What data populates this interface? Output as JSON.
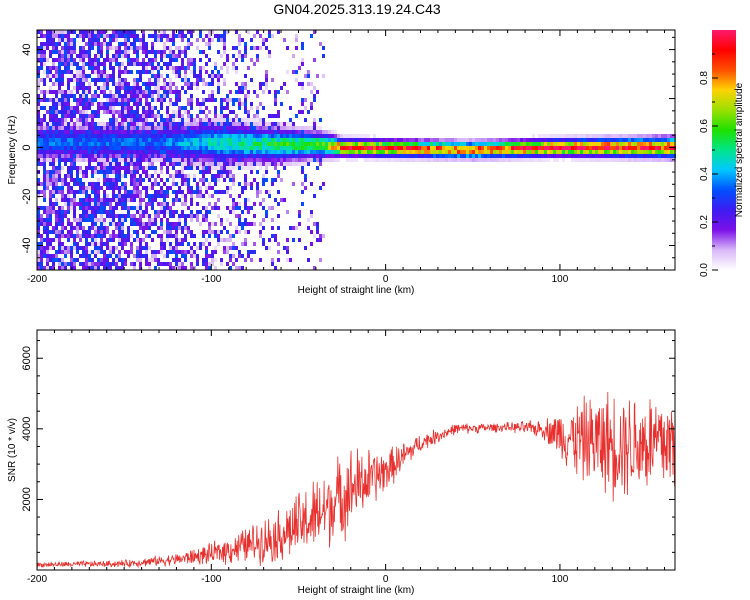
{
  "title": "GN04.2025.313.19.24.C43",
  "chart_data": [
    {
      "type": "heatmap",
      "name": "spectrogram",
      "xlabel": "Height of straight line (km)",
      "ylabel": "Frequency (Hz)",
      "xlim": [
        -200,
        166
      ],
      "ylim": [
        -50,
        48
      ],
      "xticks": [
        -200,
        -100,
        0,
        100
      ],
      "yticks": [
        -40,
        -20,
        0,
        20,
        40
      ],
      "colorbar": {
        "label": "Normalized spectral amplitude",
        "range": [
          0,
          1
        ],
        "ticks": [
          0.0,
          0.2,
          0.4,
          0.6,
          0.8
        ],
        "tick_labels": [
          "0.0",
          "0.2",
          "0.4",
          "0.6",
          "0.8"
        ],
        "colors": [
          "#ffffff",
          "#d9b8f8",
          "#7b10e8",
          "#3d1cf2",
          "#0050ff",
          "#00c8ff",
          "#00e58a",
          "#1fe000",
          "#9be000",
          "#ffd200",
          "#ff5000",
          "#ff0000",
          "#ff1a6e"
        ]
      },
      "signal_track": [
        {
          "x": -130,
          "center": 2,
          "width": 8,
          "peak": 0.35
        },
        {
          "x": -100,
          "center": 2,
          "width": 10,
          "peak": 0.45
        },
        {
          "x": -60,
          "center": 1,
          "width": 8,
          "peak": 0.55
        },
        {
          "x": -35,
          "center": 1,
          "width": 6,
          "peak": 0.6
        },
        {
          "x": -25,
          "center": 0,
          "width": 4,
          "peak": 0.95
        },
        {
          "x": 50,
          "center": -1,
          "width": 4,
          "peak": 0.85
        },
        {
          "x": 100,
          "center": 0,
          "width": 4,
          "peak": 0.98
        },
        {
          "x": 166,
          "center": 0,
          "width": 5,
          "peak": 0.9
        }
      ]
    },
    {
      "type": "line",
      "name": "snr",
      "xlabel": "Height of straight line (km)",
      "ylabel": "SNR (10 * v/v)",
      "xlim": [
        -200,
        166
      ],
      "ylim": [
        0,
        6800
      ],
      "xticks": [
        -200,
        -100,
        0,
        100
      ],
      "yticks": [
        2000,
        4000,
        6000
      ],
      "color": "#e8312e",
      "series": [
        {
          "x": -200,
          "mean": 150,
          "noise": 80
        },
        {
          "x": -150,
          "mean": 180,
          "noise": 120
        },
        {
          "x": -120,
          "mean": 300,
          "noise": 200
        },
        {
          "x": -100,
          "mean": 450,
          "noise": 350
        },
        {
          "x": -80,
          "mean": 700,
          "noise": 600
        },
        {
          "x": -60,
          "mean": 1000,
          "noise": 900
        },
        {
          "x": -40,
          "mean": 1500,
          "noise": 1300
        },
        {
          "x": -20,
          "mean": 2300,
          "noise": 1400
        },
        {
          "x": 0,
          "mean": 2800,
          "noise": 700
        },
        {
          "x": 20,
          "mean": 3600,
          "noise": 300
        },
        {
          "x": 40,
          "mean": 4000,
          "noise": 180
        },
        {
          "x": 70,
          "mean": 4050,
          "noise": 150
        },
        {
          "x": 90,
          "mean": 4000,
          "noise": 300
        },
        {
          "x": 110,
          "mean": 3700,
          "noise": 1300
        },
        {
          "x": 130,
          "mean": 3600,
          "noise": 1800
        },
        {
          "x": 166,
          "mean": 3600,
          "noise": 1800
        }
      ]
    }
  ]
}
